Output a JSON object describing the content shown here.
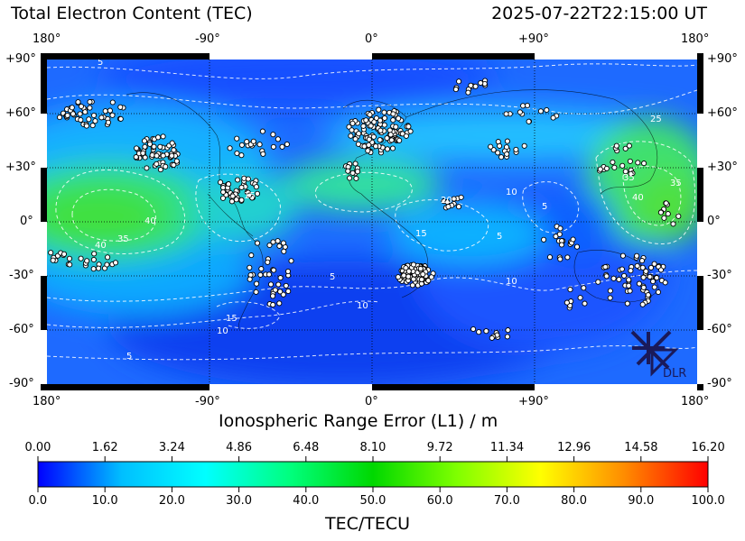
{
  "title_left": "Total Electron Content (TEC)",
  "title_right": "2025-07-22T22:15:00 UT",
  "logo_text": "DLR",
  "map": {
    "xtick_labels": [
      "180°",
      "-90°",
      "0°",
      "+90°",
      "180°"
    ],
    "ytick_labels": [
      "+90°",
      "+60°",
      "+30°",
      "0°",
      "-30°",
      "-60°",
      "-90°"
    ],
    "xlabel": "Ionospheric Range Error (L1) / m",
    "contour_labels": [
      "5",
      "10",
      "15",
      "20",
      "25",
      "30",
      "35",
      "40"
    ]
  },
  "colorbar": {
    "top_ticks": [
      "0.00",
      "1.62",
      "3.24",
      "4.86",
      "6.48",
      "8.10",
      "9.72",
      "11.34",
      "12.96",
      "14.58",
      "16.20"
    ],
    "bottom_ticks": [
      "0.0",
      "10.0",
      "20.0",
      "30.0",
      "40.0",
      "50.0",
      "60.0",
      "70.0",
      "80.0",
      "90.0",
      "100.0"
    ],
    "label": "TEC/TECU",
    "colors": [
      "#0000ff",
      "#00bfff",
      "#00ffff",
      "#00ff7f",
      "#00d800",
      "#7fff00",
      "#ffff00",
      "#ff8c00",
      "#ff0000"
    ]
  },
  "chart_data": {
    "type": "heatmap",
    "title": "Total Electron Content (TEC)",
    "timestamp": "2025-07-22T22:15:00 UT",
    "xlabel": "Ionospheric Range Error (L1) / m",
    "colorbar_label": "TEC/TECU",
    "x_range_deg": [
      -180,
      180
    ],
    "y_range_deg": [
      -90,
      90
    ],
    "tec_range": [
      0,
      100
    ],
    "range_error_range_m": [
      0,
      16.2
    ],
    "contour_levels": [
      5,
      10,
      15,
      20,
      25,
      30,
      35,
      40
    ],
    "grid": true,
    "approx_peak_regions": [
      {
        "lon": -155,
        "lat": 0,
        "tec": 40
      },
      {
        "lon": 165,
        "lat": 5,
        "tec": 40
      },
      {
        "lon": 150,
        "lat": 35,
        "tec": 40
      }
    ],
    "stations_shown": true
  }
}
